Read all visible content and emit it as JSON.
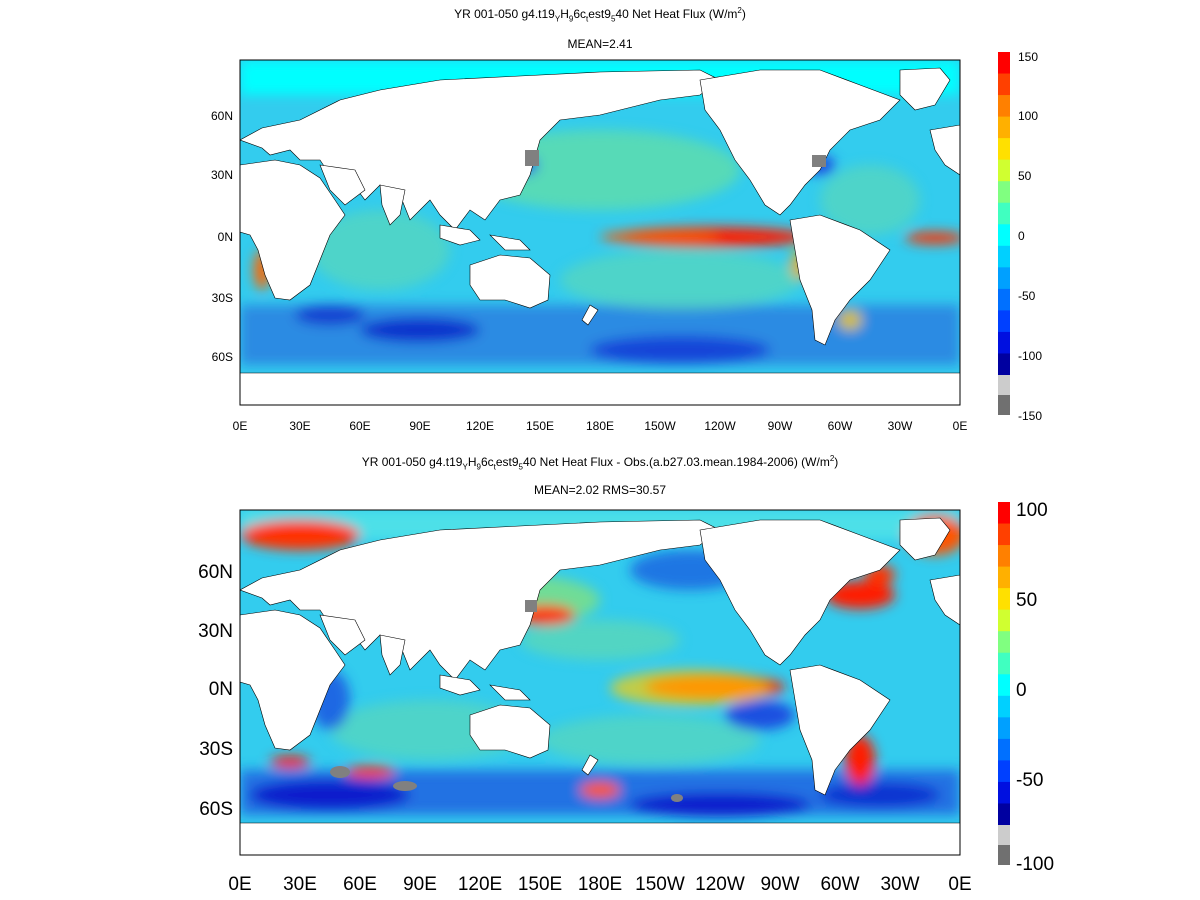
{
  "panels": [
    {
      "title_main": "YR 001-050 g4.t19",
      "title_sub1": "Y",
      "title_mid1": "H",
      "title_sub2": "9",
      "title_mid2": "6c",
      "title_sub3": "t",
      "title_mid3": "est9",
      "title_sub4": "5",
      "title_end": "40  Net Heat Flux (W/m",
      "title_sup": "2",
      "title_close": ")",
      "subtitle": "MEAN=2.41",
      "xticks": [
        "0E",
        "30E",
        "60E",
        "90E",
        "120E",
        "150E",
        "180E",
        "150W",
        "120W",
        "90W",
        "60W",
        "30W",
        "0E"
      ],
      "yticks": [
        "60N",
        "30N",
        "0N",
        "30S",
        "60S"
      ],
      "colorbar_ticks": [
        "150",
        "100",
        "50",
        "0",
        "-50",
        "-100",
        "-150"
      ],
      "colorbar_range": [
        -150,
        150
      ]
    },
    {
      "title_main": "YR 001-050 g4.t19",
      "title_sub1": "Y",
      "title_mid1": "H",
      "title_sub2": "9",
      "title_mid2": "6c",
      "title_sub3": "t",
      "title_mid3": "est9",
      "title_sub4": "5",
      "title_end": "40  Net Heat Flux - Obs.(a.b27.03.mean.1984-2006) (W/m",
      "title_sup": "2",
      "title_close": ")",
      "subtitle": "MEAN=2.02 RMS=30.57",
      "xticks": [
        "0E",
        "30E",
        "60E",
        "90E",
        "120E",
        "150E",
        "180E",
        "150W",
        "120W",
        "90W",
        "60W",
        "30W",
        "0E"
      ],
      "yticks": [
        "60N",
        "30N",
        "0N",
        "30S",
        "60S"
      ],
      "colorbar_ticks": [
        "100",
        "50",
        "0",
        "-50",
        "-100"
      ],
      "colorbar_range": [
        -100,
        100
      ]
    }
  ],
  "colors": {
    "land": "#ffffff",
    "ocean_base": "#33ccee",
    "warm": "#ff1a00",
    "cold": "#0a1ecc",
    "missing": "#808080"
  }
}
